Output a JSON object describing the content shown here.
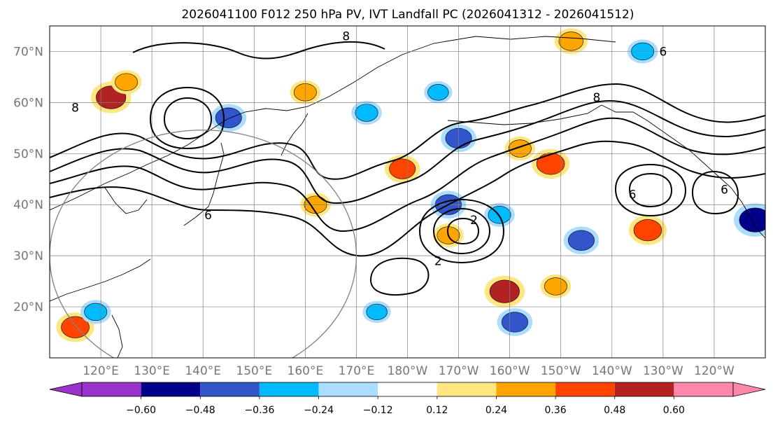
{
  "title": "2026041100 F012 250 hPa PV, IVT Landfall PC (2026041312 - 2026041512)",
  "map": {
    "extent": {
      "lon_min": 110,
      "lon_max": 250,
      "lat_min": 10,
      "lat_max": 75
    },
    "lon_ticks": [
      {
        "lon": 120,
        "label": "120°E"
      },
      {
        "lon": 130,
        "label": "130°E"
      },
      {
        "lon": 140,
        "label": "140°E"
      },
      {
        "lon": 150,
        "label": "150°E"
      },
      {
        "lon": 160,
        "label": "160°E"
      },
      {
        "lon": 170,
        "label": "170°E"
      },
      {
        "lon": 180,
        "label": "180°W"
      },
      {
        "lon": 190,
        "label": "170°W"
      },
      {
        "lon": 200,
        "label": "160°W"
      },
      {
        "lon": 210,
        "label": "150°W"
      },
      {
        "lon": 220,
        "label": "140°W"
      },
      {
        "lon": 230,
        "label": "130°W"
      },
      {
        "lon": 240,
        "label": "120°W"
      }
    ],
    "lat_ticks": [
      {
        "lat": 20,
        "label": "20°N"
      },
      {
        "lat": 30,
        "label": "30°N"
      },
      {
        "lat": 40,
        "label": "40°N"
      },
      {
        "lat": 50,
        "label": "50°N"
      },
      {
        "lat": 60,
        "label": "60°N"
      },
      {
        "lat": 70,
        "label": "70°N"
      }
    ],
    "contour_labels": [
      {
        "text": "8",
        "lon": 168,
        "lat": 73
      },
      {
        "text": "8",
        "lon": 115,
        "lat": 59
      },
      {
        "text": "6",
        "lon": 141,
        "lat": 38
      },
      {
        "text": "2",
        "lon": 186,
        "lat": 29
      },
      {
        "text": "6",
        "lon": 224,
        "lat": 42
      },
      {
        "text": "8",
        "lon": 217,
        "lat": 61
      },
      {
        "text": "6",
        "lon": 242,
        "lat": 43
      },
      {
        "text": "6",
        "lon": 230,
        "lat": 70
      },
      {
        "text": "2",
        "lon": 193,
        "lat": 37
      }
    ],
    "anomalies": [
      {
        "lon": 122,
        "lat": 61,
        "value": 0.5
      },
      {
        "lon": 125,
        "lat": 64,
        "value": 0.3
      },
      {
        "lon": 145,
        "lat": 57,
        "value": -0.4
      },
      {
        "lon": 160,
        "lat": 62,
        "value": 0.3
      },
      {
        "lon": 172,
        "lat": 58,
        "value": -0.3
      },
      {
        "lon": 186,
        "lat": 62,
        "value": -0.25
      },
      {
        "lon": 190,
        "lat": 53,
        "value": -0.4
      },
      {
        "lon": 188,
        "lat": 40,
        "value": -0.4
      },
      {
        "lon": 179,
        "lat": 47,
        "value": 0.4
      },
      {
        "lon": 202,
        "lat": 51,
        "value": 0.3
      },
      {
        "lon": 208,
        "lat": 48,
        "value": 0.45
      },
      {
        "lon": 212,
        "lat": 72,
        "value": 0.35
      },
      {
        "lon": 227,
        "lat": 35,
        "value": 0.45
      },
      {
        "lon": 248,
        "lat": 37,
        "value": -0.55
      },
      {
        "lon": 198,
        "lat": 38,
        "value": -0.3
      },
      {
        "lon": 199,
        "lat": 23,
        "value": 0.5
      },
      {
        "lon": 201,
        "lat": 17,
        "value": -0.4
      },
      {
        "lon": 214,
        "lat": 33,
        "value": -0.4
      },
      {
        "lon": 115,
        "lat": 16,
        "value": 0.45
      },
      {
        "lon": 119,
        "lat": 19,
        "value": -0.3
      },
      {
        "lon": 162,
        "lat": 40,
        "value": 0.3
      },
      {
        "lon": 226,
        "lat": 70,
        "value": -0.3
      },
      {
        "lon": 174,
        "lat": 19,
        "value": -0.25
      },
      {
        "lon": 209,
        "lat": 24,
        "value": 0.3
      },
      {
        "lon": 188,
        "lat": 34,
        "value": 0.3
      }
    ],
    "circle": {
      "lon": 140,
      "lat": 30,
      "radius_deg": 30
    }
  },
  "colorbar": {
    "colors": [
      "#9933cc",
      "#000088",
      "#3355cc",
      "#00bbff",
      "#aaddff",
      "#ffffff",
      "#ffe680",
      "#ffa500",
      "#ff4400",
      "#b22222",
      "#ff88aa"
    ],
    "tick_labels": [
      "−0.60",
      "−0.48",
      "−0.36",
      "−0.24",
      "−0.12",
      "0.12",
      "0.24",
      "0.36",
      "0.48",
      "0.60"
    ]
  }
}
